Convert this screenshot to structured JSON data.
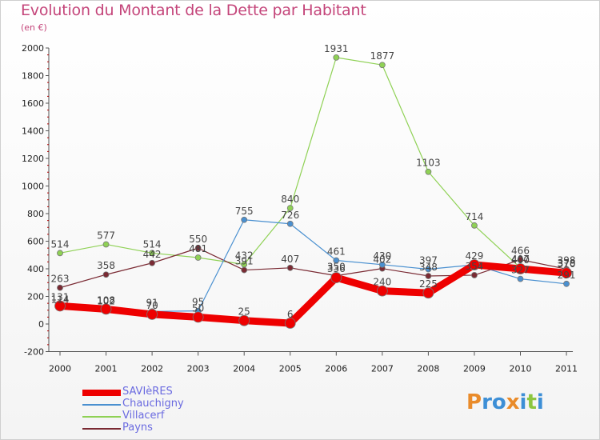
{
  "chart_data": {
    "type": "line",
    "title": "Evolution du Montant de la Dette par Habitant",
    "subtitle": "(en €)",
    "xlabel": "",
    "ylabel": "",
    "x": [
      2000,
      2001,
      2002,
      2003,
      2004,
      2005,
      2006,
      2007,
      2008,
      2009,
      2010,
      2011
    ],
    "ylim": [
      -200,
      2000
    ],
    "yticks": [
      -200,
      0,
      200,
      400,
      600,
      800,
      1000,
      1200,
      1400,
      1600,
      1800,
      2000
    ],
    "grid": false,
    "legend_position": "bottom-left",
    "series": [
      {
        "name": "Villacerf",
        "color": "#8fd155",
        "line_width": 1.2,
        "values": [
          514,
          577,
          514,
          481,
          432,
          840,
          1931,
          1877,
          1103,
          714,
          407,
          378
        ]
      },
      {
        "name": "Payns",
        "color": "#7a2a33",
        "line_width": 1.2,
        "values": [
          263,
          358,
          442,
          550,
          391,
          407,
          350,
          402,
          348,
          354,
          466,
          398
        ]
      },
      {
        "name": "Chauchigny",
        "color": "#4a90d0",
        "line_width": 1.2,
        "values": [
          114,
          102,
          91,
          95,
          755,
          726,
          461,
          430,
          397,
          429,
          327,
          291
        ]
      },
      {
        "name": "SAVIèRES",
        "color": "#ee0000",
        "line_width": 9,
        "values": [
          131,
          108,
          70,
          50,
          25,
          6,
          336,
          240,
          225,
          429,
          400,
          370
        ]
      }
    ],
    "data_labels": [
      {
        "x": 2000,
        "text": "514"
      },
      {
        "x": 2001,
        "text": "577"
      },
      {
        "x": 2002,
        "text": "514"
      },
      {
        "x": 2003,
        "text": "550"
      },
      {
        "x": 2004,
        "text": "755"
      },
      {
        "x": 2004,
        "text": "432"
      },
      {
        "x": 2005,
        "text": "840"
      },
      {
        "x": 2005,
        "text": "726"
      },
      {
        "x": 2006,
        "text": "1931"
      },
      {
        "x": 2007,
        "text": "1877"
      },
      {
        "x": 2008,
        "text": "1103"
      },
      {
        "x": 2009,
        "text": "714"
      },
      {
        "x": 2000,
        "text": "263"
      },
      {
        "x": 2001,
        "text": "358"
      },
      {
        "x": 2002,
        "text": "442"
      },
      {
        "x": 2003,
        "text": "481"
      },
      {
        "x": 2004,
        "text": "391"
      },
      {
        "x": 2005,
        "text": "407"
      },
      {
        "x": 2006,
        "text": "461"
      },
      {
        "x": 2007,
        "text": "430"
      },
      {
        "x": 2007,
        "text": "402"
      },
      {
        "x": 2008,
        "text": "397"
      },
      {
        "x": 2008,
        "text": "348"
      },
      {
        "x": 2009,
        "text": "429"
      },
      {
        "x": 2009,
        "text": "354"
      },
      {
        "x": 2010,
        "text": "466"
      },
      {
        "x": 2010,
        "text": "407"
      },
      {
        "x": 2010,
        "text": "400"
      },
      {
        "x": 2010,
        "text": "327"
      },
      {
        "x": 2011,
        "text": "398"
      },
      {
        "x": 2011,
        "text": "378"
      },
      {
        "x": 2011,
        "text": "370"
      },
      {
        "x": 2011,
        "text": "291"
      },
      {
        "x": 2000,
        "text": "131"
      },
      {
        "x": 2000,
        "text": "114"
      },
      {
        "x": 2001,
        "text": "108"
      },
      {
        "x": 2001,
        "text": "102"
      },
      {
        "x": 2002,
        "text": "91"
      },
      {
        "x": 2002,
        "text": "70"
      },
      {
        "x": 2003,
        "text": "95"
      },
      {
        "x": 2003,
        "text": "50"
      },
      {
        "x": 2004,
        "text": "25"
      },
      {
        "x": 2005,
        "text": "6"
      },
      {
        "x": 2006,
        "text": "350"
      },
      {
        "x": 2006,
        "text": "336"
      },
      {
        "x": 2007,
        "text": "240"
      },
      {
        "x": 2008,
        "text": "225"
      }
    ]
  },
  "branding": {
    "logo_text": "Proxiti",
    "logo_letters": [
      {
        "char": "P",
        "color": "#e98b2a"
      },
      {
        "char": "r",
        "color": "#3d8fd6"
      },
      {
        "char": "o",
        "color": "#3d8fd6"
      },
      {
        "char": "x",
        "color": "#e98b2a"
      },
      {
        "char": "i",
        "color": "#3d8fd6"
      },
      {
        "char": "t",
        "color": "#8cc63f"
      },
      {
        "char": "i",
        "color": "#3d8fd6"
      }
    ]
  },
  "colors": {
    "title": "#c4457a",
    "axis": "#555555",
    "legend_text": "#6a6ae0",
    "point_outline": "#777777"
  }
}
